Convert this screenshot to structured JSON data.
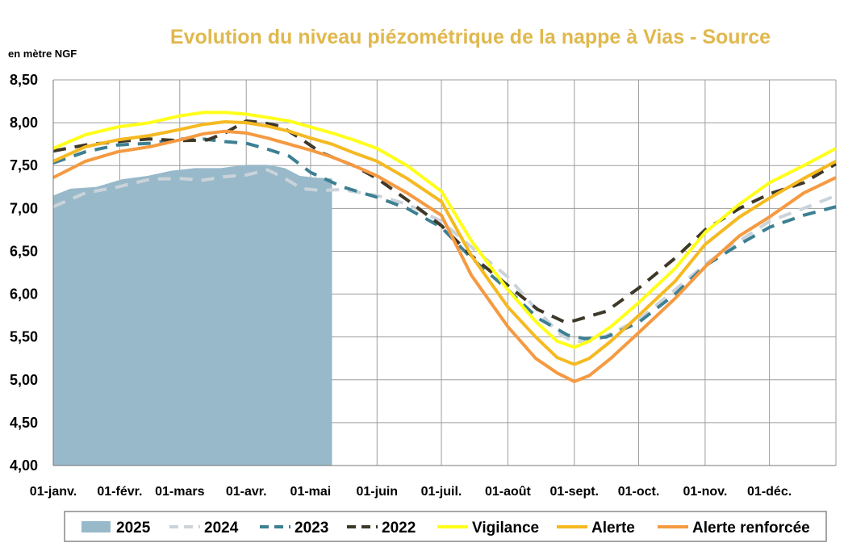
{
  "chart_data": {
    "type": "line",
    "title": "Evolution du niveau piézométrique  de la nappe à Vias  - Source",
    "ylabel": "en mètre NGF",
    "xlabel": "",
    "ylim": [
      4.0,
      8.5
    ],
    "xlim": [
      0,
      365
    ],
    "grid": true,
    "legend_position": "bottom",
    "yticks": [
      {
        "value": 4.0,
        "label": "4,00"
      },
      {
        "value": 4.5,
        "label": "4,50"
      },
      {
        "value": 5.0,
        "label": "5,00"
      },
      {
        "value": 5.5,
        "label": "5,50"
      },
      {
        "value": 6.0,
        "label": "6,00"
      },
      {
        "value": 6.5,
        "label": "6,50"
      },
      {
        "value": 7.0,
        "label": "7,00"
      },
      {
        "value": 7.5,
        "label": "7,50"
      },
      {
        "value": 8.0,
        "label": "8,00"
      },
      {
        "value": 8.5,
        "label": "8,50"
      }
    ],
    "xticks": [
      {
        "day": 0,
        "label": "01-janv."
      },
      {
        "day": 31,
        "label": "01-févr."
      },
      {
        "day": 59,
        "label": "01-mars"
      },
      {
        "day": 90,
        "label": "01-avr."
      },
      {
        "day": 120,
        "label": "01-mai"
      },
      {
        "day": 151,
        "label": "01-juin"
      },
      {
        "day": 181,
        "label": "01-juil."
      },
      {
        "day": 212,
        "label": "01-août"
      },
      {
        "day": 243,
        "label": "01-sept."
      },
      {
        "day": 273,
        "label": "01-oct."
      },
      {
        "day": 304,
        "label": "01-nov."
      },
      {
        "day": 334,
        "label": "01-déc."
      },
      {
        "day": 365,
        "label": ""
      }
    ],
    "series": [
      {
        "name": "2025",
        "kind": "area",
        "color": "#98b9c9",
        "x": [
          0,
          8,
          20,
          32,
          44,
          55,
          66,
          78,
          90,
          100,
          108,
          115,
          122,
          130
        ],
        "y": [
          7.15,
          7.23,
          7.25,
          7.34,
          7.38,
          7.44,
          7.47,
          7.47,
          7.51,
          7.51,
          7.47,
          7.38,
          7.36,
          7.35
        ]
      },
      {
        "name": "2024",
        "kind": "line",
        "color": "#cbd3da",
        "dash": "16,11",
        "width": 4,
        "x": [
          0,
          15,
          30,
          45,
          59,
          70,
          80,
          90,
          100,
          108,
          116,
          125,
          135,
          151,
          165,
          181,
          195,
          212,
          226,
          237,
          243,
          255,
          273,
          290,
          304,
          320,
          334,
          350,
          365
        ],
        "y": [
          7.02,
          7.18,
          7.25,
          7.34,
          7.35,
          7.33,
          7.37,
          7.39,
          7.45,
          7.35,
          7.23,
          7.21,
          7.22,
          7.15,
          7.05,
          6.85,
          6.55,
          6.2,
          5.8,
          5.52,
          5.44,
          5.48,
          5.7,
          6.05,
          6.35,
          6.62,
          6.85,
          7.0,
          7.15
        ]
      },
      {
        "name": "2023",
        "kind": "line",
        "color": "#3d7f93",
        "dash": "16,11",
        "width": 4,
        "x": [
          0,
          15,
          30,
          45,
          59,
          70,
          80,
          90,
          100,
          110,
          120,
          135,
          151,
          165,
          181,
          195,
          212,
          226,
          240,
          248,
          258,
          273,
          290,
          304,
          320,
          334,
          350,
          365
        ],
        "y": [
          7.53,
          7.66,
          7.74,
          7.76,
          7.81,
          7.81,
          7.78,
          7.76,
          7.69,
          7.61,
          7.42,
          7.25,
          7.13,
          7.0,
          6.78,
          6.42,
          6.05,
          5.72,
          5.52,
          5.48,
          5.5,
          5.67,
          6.0,
          6.33,
          6.58,
          6.78,
          6.92,
          7.02
        ]
      },
      {
        "name": "2022",
        "kind": "line",
        "color": "#3e3829",
        "dash": "16,11",
        "width": 4,
        "x": [
          0,
          15,
          30,
          45,
          59,
          72,
          80,
          90,
          98,
          106,
          115,
          125,
          140,
          151,
          165,
          181,
          195,
          212,
          226,
          238,
          243,
          258,
          273,
          290,
          304,
          320,
          334,
          350,
          365
        ],
        "y": [
          7.67,
          7.74,
          7.78,
          7.81,
          7.79,
          7.8,
          7.88,
          8.02,
          8.0,
          7.96,
          7.82,
          7.65,
          7.5,
          7.35,
          7.1,
          6.8,
          6.45,
          6.1,
          5.82,
          5.68,
          5.69,
          5.8,
          6.07,
          6.42,
          6.75,
          7.0,
          7.17,
          7.3,
          7.52
        ]
      },
      {
        "name": "Vigilance",
        "kind": "line",
        "color": "#ffff1a",
        "dash": "",
        "width": 4,
        "x": [
          0,
          15,
          30,
          45,
          59,
          70,
          80,
          90,
          100,
          110,
          120,
          130,
          140,
          151,
          165,
          181,
          195,
          212,
          225,
          235,
          243,
          250,
          260,
          273,
          290,
          304,
          320,
          334,
          350,
          365
        ],
        "y": [
          7.7,
          7.86,
          7.95,
          8.0,
          8.08,
          8.12,
          8.12,
          8.1,
          8.06,
          8.02,
          7.95,
          7.88,
          7.8,
          7.7,
          7.5,
          7.2,
          6.62,
          6.05,
          5.68,
          5.45,
          5.38,
          5.45,
          5.62,
          5.9,
          6.3,
          6.72,
          7.05,
          7.3,
          7.5,
          7.7
        ]
      },
      {
        "name": "Alerte",
        "kind": "line",
        "color": "#f5b921",
        "dash": "",
        "width": 4,
        "x": [
          0,
          15,
          30,
          45,
          59,
          70,
          80,
          90,
          100,
          110,
          120,
          130,
          140,
          151,
          165,
          181,
          195,
          212,
          225,
          235,
          243,
          250,
          260,
          273,
          290,
          304,
          320,
          334,
          350,
          365
        ],
        "y": [
          7.55,
          7.72,
          7.8,
          7.85,
          7.92,
          7.98,
          8.01,
          8.0,
          7.96,
          7.9,
          7.82,
          7.75,
          7.65,
          7.55,
          7.35,
          7.08,
          6.45,
          5.85,
          5.5,
          5.26,
          5.18,
          5.25,
          5.45,
          5.75,
          6.15,
          6.58,
          6.9,
          7.12,
          7.35,
          7.55
        ]
      },
      {
        "name": "Alerte renforcée",
        "kind": "line",
        "color": "#f59a41",
        "dash": "",
        "width": 4,
        "x": [
          0,
          15,
          30,
          45,
          59,
          70,
          80,
          90,
          100,
          110,
          120,
          130,
          140,
          151,
          165,
          181,
          195,
          212,
          225,
          235,
          243,
          250,
          260,
          273,
          290,
          304,
          320,
          334,
          350,
          365
        ],
        "y": [
          7.36,
          7.55,
          7.66,
          7.72,
          7.8,
          7.87,
          7.9,
          7.88,
          7.82,
          7.75,
          7.68,
          7.6,
          7.5,
          7.38,
          7.18,
          6.92,
          6.22,
          5.62,
          5.25,
          5.08,
          4.98,
          5.05,
          5.25,
          5.55,
          5.95,
          6.32,
          6.68,
          6.9,
          7.18,
          7.36
        ]
      }
    ]
  }
}
